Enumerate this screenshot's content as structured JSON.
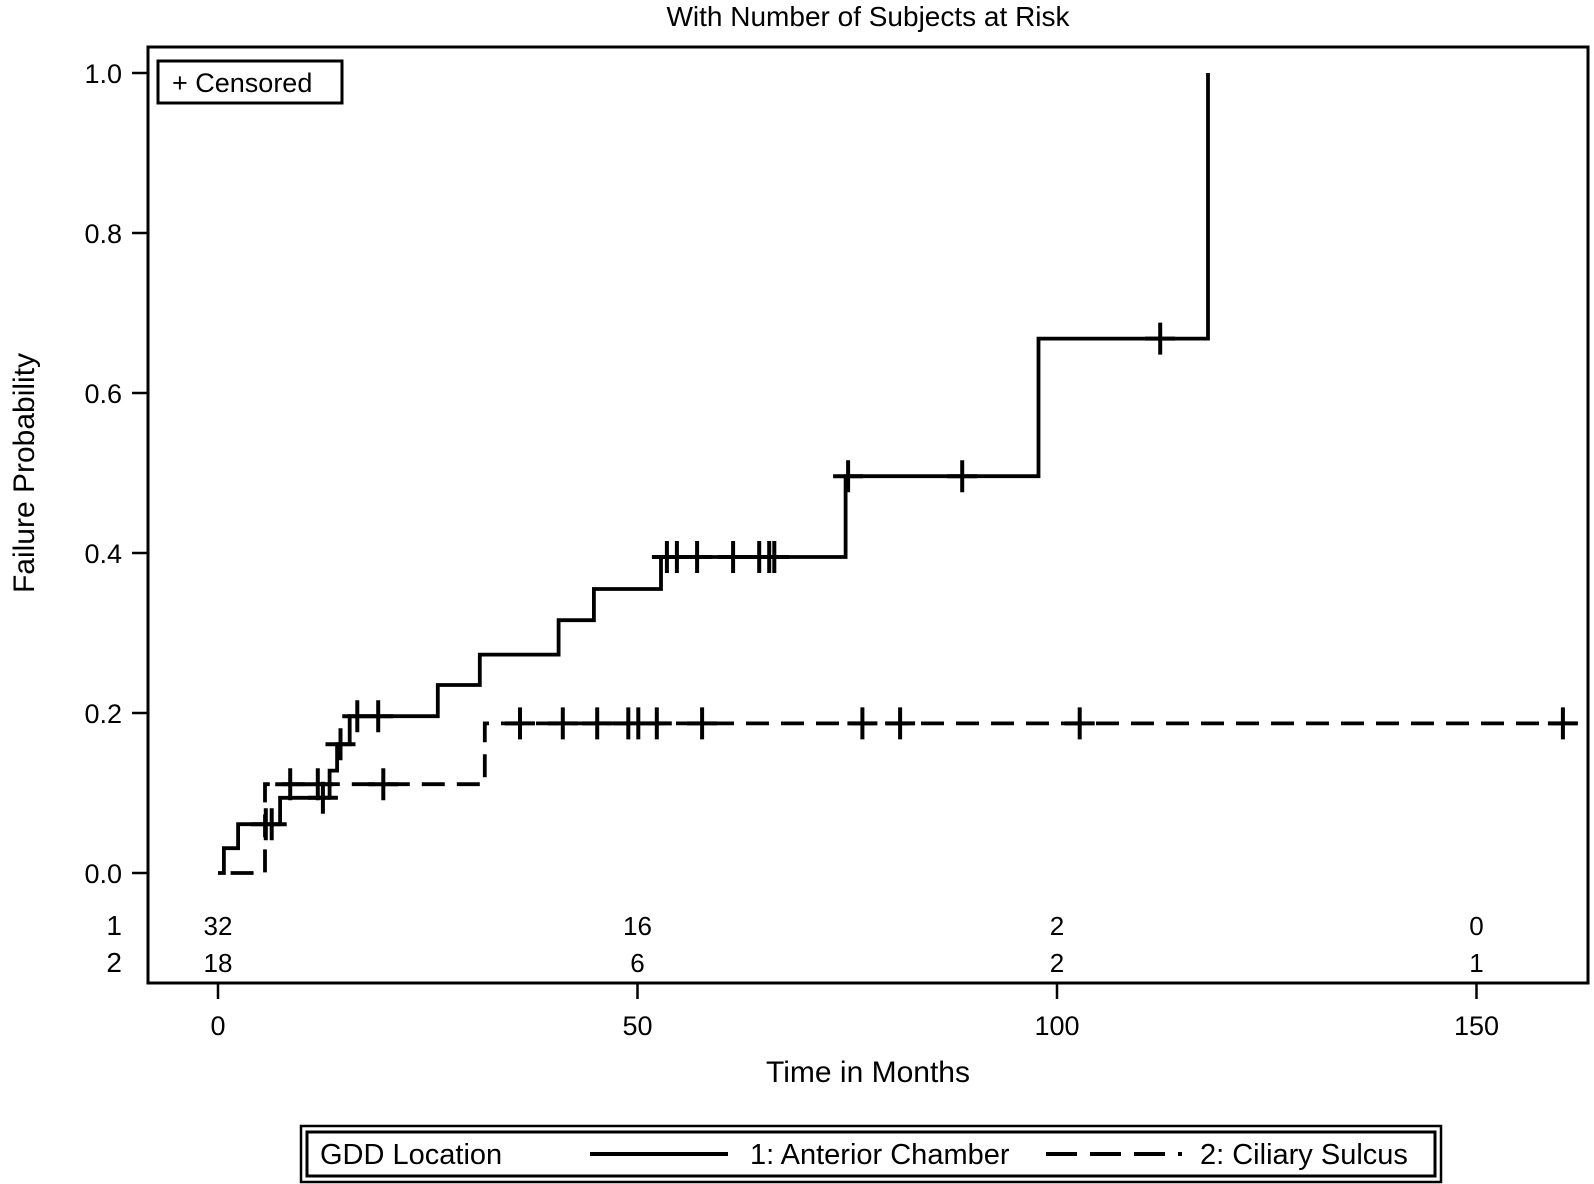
{
  "chart_data": {
    "type": "line",
    "subtype": "kaplan-meier-step-plot",
    "title": "With Number of Subjects at Risk",
    "xlabel": "Time in Months",
    "ylabel": "Failure Probability",
    "censored_label": "+ Censored",
    "xlim": [
      0,
      163
    ],
    "ylim": [
      0.0,
      1.0
    ],
    "grid": false,
    "x_ticks": [
      0,
      50,
      100,
      150
    ],
    "x_tick_labels": [
      "0",
      "50",
      "100",
      "150"
    ],
    "y_ticks": [
      0.0,
      0.2,
      0.4,
      0.6,
      0.8,
      1.0
    ],
    "y_tick_labels": [
      "0.0",
      "0.2",
      "0.4",
      "0.6",
      "0.8",
      "1.0"
    ],
    "line_color": "#000000",
    "background_color": "#ffffff",
    "legend": {
      "title": "GDD Location",
      "position": "bottom",
      "entries": [
        {
          "label": "1: Anterior Chamber",
          "style": "solid"
        },
        {
          "label": "2: Ciliary Sulcus",
          "style": "dashed"
        }
      ]
    },
    "series": [
      {
        "name": "1: Anterior Chamber",
        "style": "solid",
        "steps": [
          [
            0,
            0
          ],
          [
            0.7,
            0.031
          ],
          [
            2.4,
            0.061
          ],
          [
            7.4,
            0.094
          ],
          [
            13.3,
            0.128
          ],
          [
            14.2,
            0.161
          ],
          [
            15.7,
            0.196
          ],
          [
            26.2,
            0.235
          ],
          [
            31.2,
            0.273
          ],
          [
            40.6,
            0.316
          ],
          [
            44.8,
            0.355
          ],
          [
            52.8,
            0.395
          ],
          [
            74.8,
            0.496
          ],
          [
            97.8,
            0.668
          ],
          [
            118,
            1.0
          ]
        ],
        "censored": [
          [
            5.7,
            0.061
          ],
          [
            6.4,
            0.061
          ],
          [
            12.5,
            0.094
          ],
          [
            14.6,
            0.161
          ],
          [
            16.6,
            0.196
          ],
          [
            19.1,
            0.196
          ],
          [
            53.5,
            0.395
          ],
          [
            54.7,
            0.395
          ],
          [
            57.1,
            0.395
          ],
          [
            61.4,
            0.395
          ],
          [
            64.5,
            0.395
          ],
          [
            65.7,
            0.395
          ],
          [
            66.3,
            0.395
          ],
          [
            75.1,
            0.496
          ],
          [
            88.7,
            0.496
          ],
          [
            112.3,
            0.668
          ]
        ]
      },
      {
        "name": "2: Ciliary Sulcus",
        "style": "dashed",
        "steps": [
          [
            1.5,
            0
          ],
          [
            5.6,
            0.111
          ],
          [
            31.8,
            0.187
          ],
          [
            160.3,
            0.187
          ]
        ],
        "censored": [
          [
            8.6,
            0.111
          ],
          [
            11.9,
            0.111
          ],
          [
            19.7,
            0.111
          ],
          [
            36,
            0.187
          ],
          [
            41.1,
            0.187
          ],
          [
            45.2,
            0.187
          ],
          [
            48.9,
            0.187
          ],
          [
            50.1,
            0.187
          ],
          [
            52.3,
            0.187
          ],
          [
            57.7,
            0.187
          ],
          [
            76.8,
            0.187
          ],
          [
            81.3,
            0.187
          ],
          [
            102.7,
            0.187
          ],
          [
            160.3,
            0.187
          ]
        ]
      }
    ],
    "at_risk": {
      "times": [
        0,
        50,
        100,
        150
      ],
      "rows": [
        {
          "group": "1",
          "counts": [
            "32",
            "16",
            "2",
            "0"
          ]
        },
        {
          "group": "2",
          "counts": [
            "18",
            "6",
            "2",
            "1"
          ]
        }
      ]
    }
  }
}
